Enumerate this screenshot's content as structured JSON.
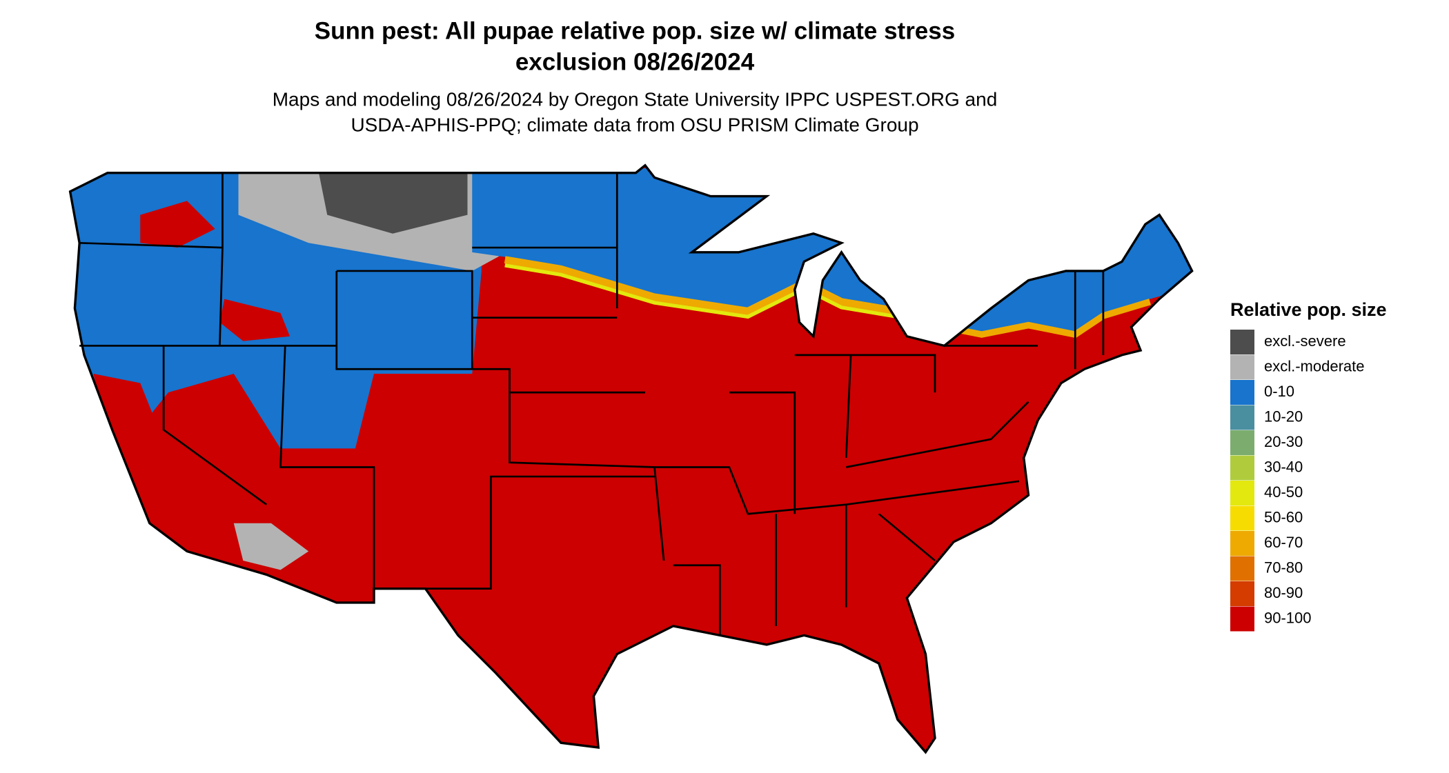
{
  "title_lines": [
    "Sunn pest: All pupae relative pop. size w/ climate stress",
    "exclusion 08/26/2024"
  ],
  "subtitle_lines": [
    "Maps and modeling 08/26/2024 by Oregon State University IPPC USPEST.ORG and",
    "USDA-APHIS-PPQ; climate data from OSU PRISM Climate Group"
  ],
  "legend": {
    "title": "Relative pop. size",
    "items": [
      {
        "label": "excl.-severe",
        "color": "#4d4d4d"
      },
      {
        "label": "excl.-moderate",
        "color": "#b3b3b3"
      },
      {
        "label": "0-10",
        "color": "#1874cd"
      },
      {
        "label": "10-20",
        "color": "#4a8fa0"
      },
      {
        "label": "20-30",
        "color": "#7cad6e"
      },
      {
        "label": "30-40",
        "color": "#b0cc3c"
      },
      {
        "label": "40-50",
        "color": "#e3e80e"
      },
      {
        "label": "50-60",
        "color": "#f6dc00"
      },
      {
        "label": "60-70",
        "color": "#eeaa00"
      },
      {
        "label": "70-80",
        "color": "#e07000"
      },
      {
        "label": "80-90",
        "color": "#d43c00"
      },
      {
        "label": "90-100",
        "color": "#cc0000"
      }
    ]
  }
}
